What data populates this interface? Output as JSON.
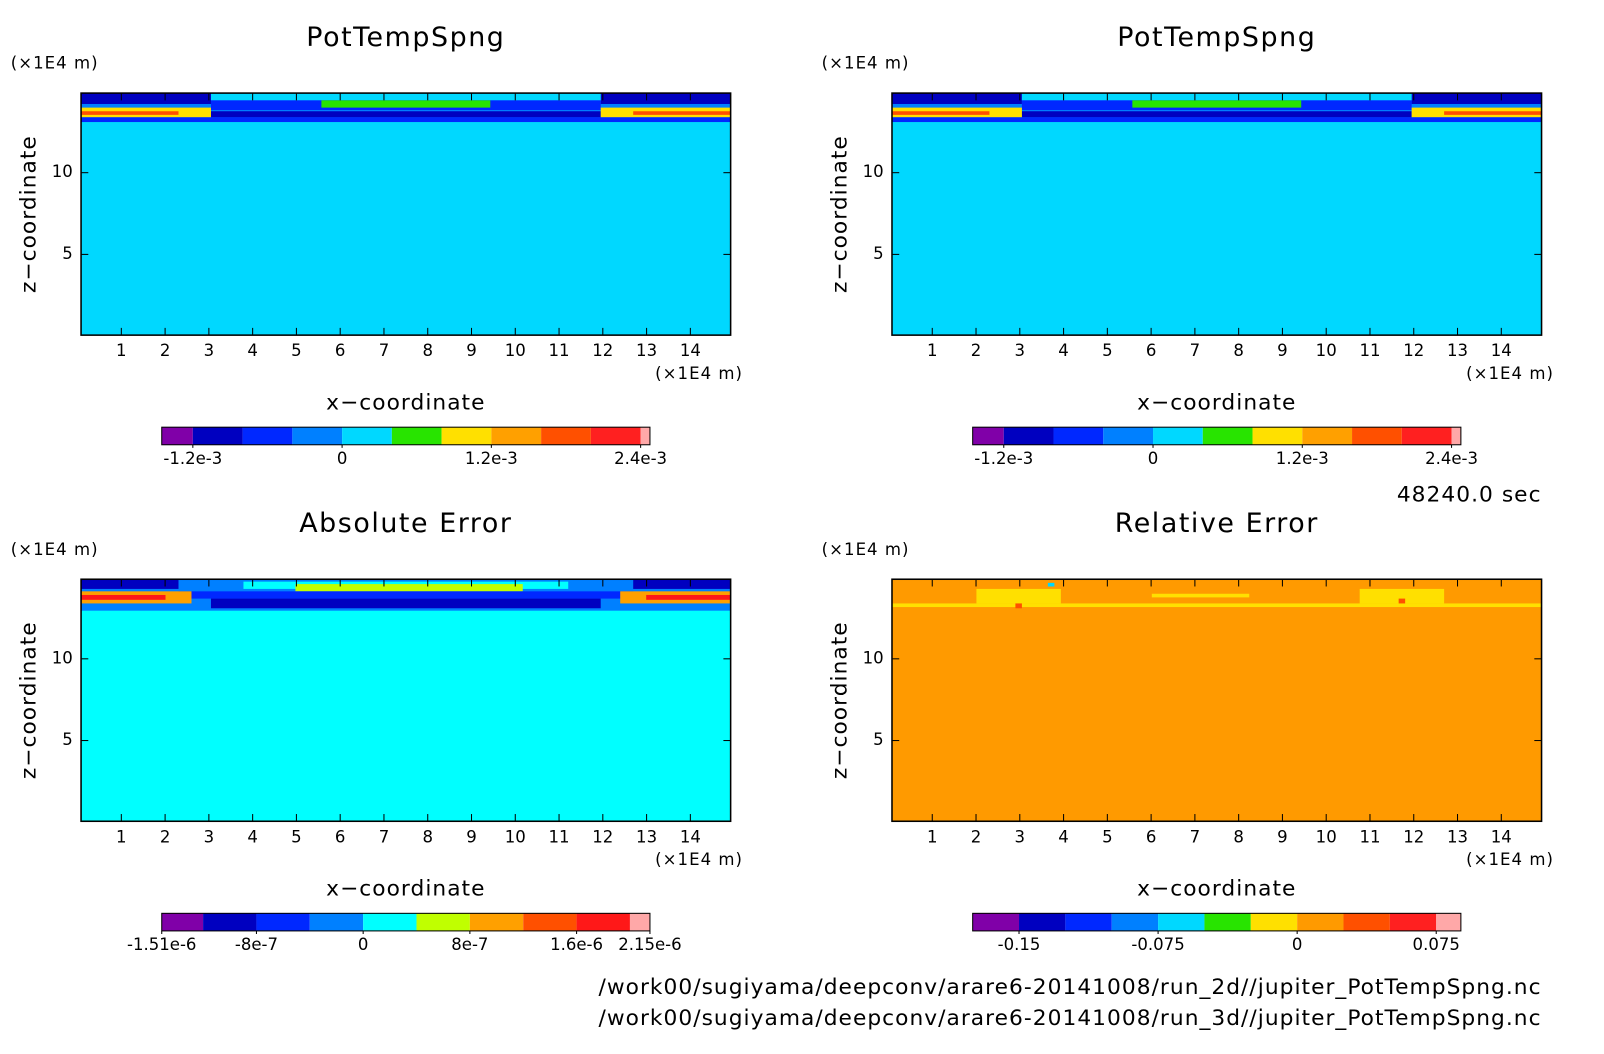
{
  "chart_data": [
    {
      "type": "contour",
      "title": "PotTempSpng",
      "xlabel": "x−coordinate",
      "ylabel": "z−coordinate",
      "x_unit": "(×1E4 m)",
      "y_unit": "(×1E4 m)",
      "xlim": [
        0.08,
        14.92
      ],
      "ylim": [
        0.06,
        14.87
      ],
      "xticks": [
        1,
        2,
        3,
        4,
        5,
        6,
        7,
        8,
        9,
        10,
        11,
        12,
        13,
        14
      ],
      "yticks": [
        5,
        10
      ],
      "colorbar": {
        "clim": [
          -0.00145,
          0.002475
        ],
        "levels": [
          -0.0012,
          -0.0008,
          -0.0004,
          0,
          0.0004,
          0.0008,
          0.0012,
          0.0016,
          0.002,
          0.0024
        ],
        "colors": [
          "#8000a8",
          "#0000c0",
          "#0028ff",
          "#0080ff",
          "#00d8ff",
          "#28e400",
          "#ffe000",
          "#ffa000",
          "#ff5000",
          "#ff2020",
          "#ffa8a8"
        ],
        "ticks": [
          {
            "value": -0.0012,
            "label": "-1.2e-3"
          },
          0,
          {
            "value": 0.0012,
            "label": "1.2e-3"
          },
          {
            "value": 0.0024,
            "label": "2.4e-3"
          }
        ]
      }
    },
    {
      "type": "contour",
      "title": "PotTempSpng",
      "xlabel": "x−coordinate",
      "ylabel": "z−coordinate",
      "x_unit": "(×1E4 m)",
      "y_unit": "(×1E4 m)",
      "xlim": [
        0.08,
        14.92
      ],
      "ylim": [
        0.06,
        14.87
      ],
      "xticks": [
        1,
        2,
        3,
        4,
        5,
        6,
        7,
        8,
        9,
        10,
        11,
        12,
        13,
        14
      ],
      "yticks": [
        5,
        10
      ],
      "colorbar": {
        "clim": [
          -0.00145,
          0.002475
        ],
        "levels": [
          -0.0012,
          -0.0008,
          -0.0004,
          0,
          0.0004,
          0.0008,
          0.0012,
          0.0016,
          0.002,
          0.0024
        ],
        "colors": [
          "#8000a8",
          "#0000c0",
          "#0028ff",
          "#0080ff",
          "#00d8ff",
          "#28e400",
          "#ffe000",
          "#ffa000",
          "#ff5000",
          "#ff2020",
          "#ffa8a8"
        ],
        "ticks": [
          {
            "value": -0.0012,
            "label": "-1.2e-3"
          },
          0,
          {
            "value": 0.0012,
            "label": "1.2e-3"
          },
          {
            "value": 0.0024,
            "label": "2.4e-3"
          }
        ]
      }
    },
    {
      "type": "contour",
      "title": "Absolute Error",
      "xlabel": "x−coordinate",
      "ylabel": "z−coordinate",
      "x_unit": "(×1E4 m)",
      "y_unit": "(×1E4 m)",
      "xlim": [
        0.08,
        14.92
      ],
      "ylim": [
        0.06,
        14.87
      ],
      "xticks": [
        1,
        2,
        3,
        4,
        5,
        6,
        7,
        8,
        9,
        10,
        11,
        12,
        13,
        14
      ],
      "yticks": [
        5,
        10
      ],
      "colorbar": {
        "clim": [
          -1.51e-06,
          2.15e-06
        ],
        "levels": [
          -1.2e-06,
          -8e-07,
          -4e-07,
          0,
          4e-07,
          8e-07,
          1.2e-06,
          1.6e-06,
          2e-06
        ],
        "colors": [
          "#8000a8",
          "#0000c0",
          "#0028ff",
          "#0080ff",
          "#00ffff",
          "#c0ff00",
          "#ffa000",
          "#ff5000",
          "#ff1818",
          "#ffa8a8"
        ],
        "ticks": [
          {
            "value": -1.51e-06,
            "label": "-1.51e-6"
          },
          {
            "value": -8e-07,
            "label": "-8e-7"
          },
          0,
          {
            "value": 8e-07,
            "label": "8e-7"
          },
          {
            "value": 1.6e-06,
            "label": "1.6e-6"
          },
          {
            "value": 2.15e-06,
            "label": "2.15e-6"
          }
        ]
      }
    },
    {
      "type": "contour",
      "title": "Relative Error",
      "xlabel": "x−coordinate",
      "ylabel": "z−coordinate",
      "x_unit": "(×1E4 m)",
      "y_unit": "(×1E4 m)",
      "xlim": [
        0.08,
        14.92
      ],
      "ylim": [
        0.06,
        14.87
      ],
      "xticks": [
        1,
        2,
        3,
        4,
        5,
        6,
        7,
        8,
        9,
        10,
        11,
        12,
        13,
        14
      ],
      "yticks": [
        5,
        10
      ],
      "colorbar": {
        "clim": [
          -0.175,
          0.0883
        ],
        "levels": [
          -0.15,
          -0.125,
          -0.1,
          -0.075,
          -0.05,
          -0.025,
          0,
          0.025,
          0.05,
          0.075
        ],
        "colors": [
          "#8000a8",
          "#0000c0",
          "#0028ff",
          "#0080ff",
          "#00d8ff",
          "#28e400",
          "#ffe000",
          "#ff9a00",
          "#ff5000",
          "#ff2020",
          "#ffa8a8"
        ],
        "ticks": [
          {
            "value": -0.15,
            "label": "-0.15"
          },
          {
            "value": -0.075,
            "label": "-0.075"
          },
          0,
          {
            "value": 0.075,
            "label": "0.075"
          }
        ]
      }
    }
  ],
  "annotations": {
    "time": "48240.0 sec",
    "files": [
      "/work00/sugiyama/deepconv/arare6-20141008/run_2d//jupiter_PotTempSpng.nc",
      "/work00/sugiyama/deepconv/arare6-20141008/run_3d//jupiter_PotTempSpng.nc"
    ]
  }
}
